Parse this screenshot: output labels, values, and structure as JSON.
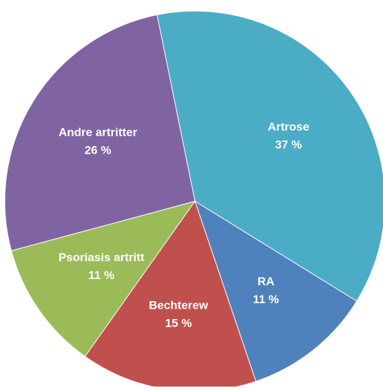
{
  "chart_data": {
    "type": "pie",
    "categories": [
      "Artrose",
      "RA",
      "Bechterew",
      "Psoriasis artritt",
      "Andre artritter"
    ],
    "values": [
      37,
      11,
      15,
      11,
      26
    ],
    "value_labels": [
      "37 %",
      "11 %",
      "15 %",
      "11 %",
      "26 %"
    ],
    "colors": [
      "#4bacc6",
      "#4f81bd",
      "#c0504d",
      "#9bbb59",
      "#8064a2"
    ]
  }
}
